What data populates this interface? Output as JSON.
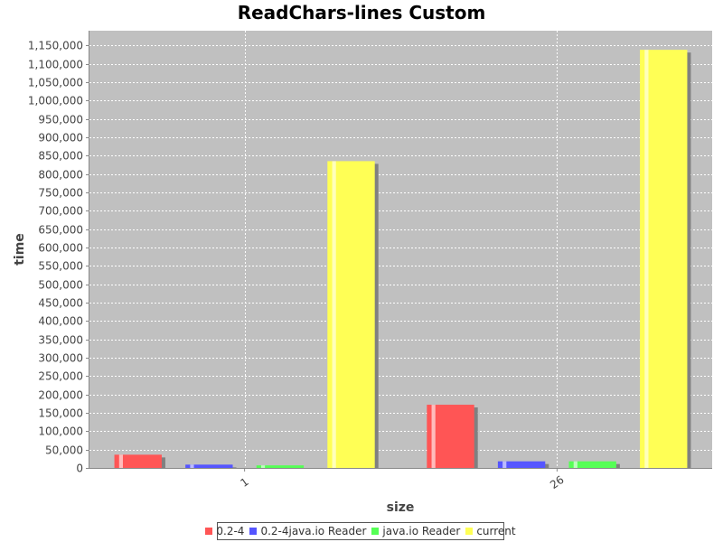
{
  "chart_data": {
    "type": "bar",
    "title": "ReadChars-lines Custom",
    "xlabel": "size",
    "ylabel": "time",
    "categories": [
      "1",
      "26"
    ],
    "ylim": [
      0,
      1190000
    ],
    "ytick_step": 50000,
    "grid": true,
    "legend_position": "bottom",
    "series": [
      {
        "name": "0.2-4",
        "color": "#ff5555",
        "values": [
          36000,
          172000
        ]
      },
      {
        "name": "0.2-4java.io Reader",
        "color": "#5555ff",
        "values": [
          9000,
          18000
        ]
      },
      {
        "name": "java.io Reader",
        "color": "#55ff55",
        "values": [
          7000,
          18000
        ]
      },
      {
        "name": "current",
        "color": "#ffff55",
        "values": [
          835000,
          1138000
        ]
      }
    ]
  }
}
